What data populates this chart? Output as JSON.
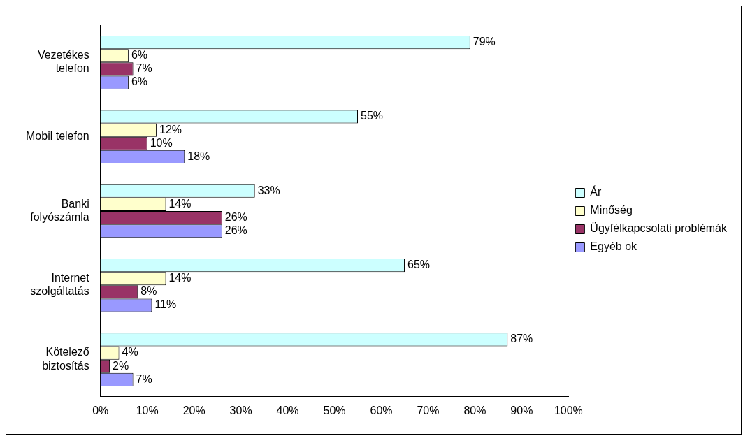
{
  "chart_data": {
    "type": "bar",
    "orientation": "horizontal",
    "categories": [
      "Vezetékes telefon",
      "Mobil telefon",
      "Banki folyószámla",
      "Internet szolgáltatás",
      "Kötelező biztosítás"
    ],
    "series": [
      {
        "name": "Ár",
        "color": "#ccffff",
        "values": [
          79,
          55,
          33,
          65,
          87
        ],
        "value_labels": [
          "79%",
          "55%",
          "33%",
          "65%",
          "87%"
        ]
      },
      {
        "name": "Minőség",
        "color": "#ffffcc",
        "values": [
          6,
          12,
          14,
          14,
          4
        ],
        "value_labels": [
          "6%",
          "12%",
          "14%",
          "14%",
          "4%"
        ]
      },
      {
        "name": "Ügyfélkapcsolati problémák",
        "color": "#993366",
        "values": [
          7,
          10,
          26,
          8,
          2
        ],
        "value_labels": [
          "7%",
          "10%",
          "26%",
          "8%",
          "2%"
        ]
      },
      {
        "name": "Egyéb ok",
        "color": "#9999ff",
        "values": [
          6,
          18,
          26,
          11,
          7
        ],
        "value_labels": [
          "6%",
          "18%",
          "26%",
          "11%",
          "7%"
        ]
      }
    ],
    "xlim": [
      0,
      100
    ],
    "xticks": [
      {
        "value": 0,
        "label": "0%"
      },
      {
        "value": 10,
        "label": "10%"
      },
      {
        "value": 20,
        "label": "20%"
      },
      {
        "value": 30,
        "label": "30%"
      },
      {
        "value": 40,
        "label": "40%"
      },
      {
        "value": 50,
        "label": "50%"
      },
      {
        "value": 60,
        "label": "60%"
      },
      {
        "value": 70,
        "label": "70%"
      },
      {
        "value": 80,
        "label": "80%"
      },
      {
        "value": 90,
        "label": "90%"
      },
      {
        "value": 100,
        "label": "100%"
      }
    ],
    "grid": false,
    "legend": "right"
  }
}
